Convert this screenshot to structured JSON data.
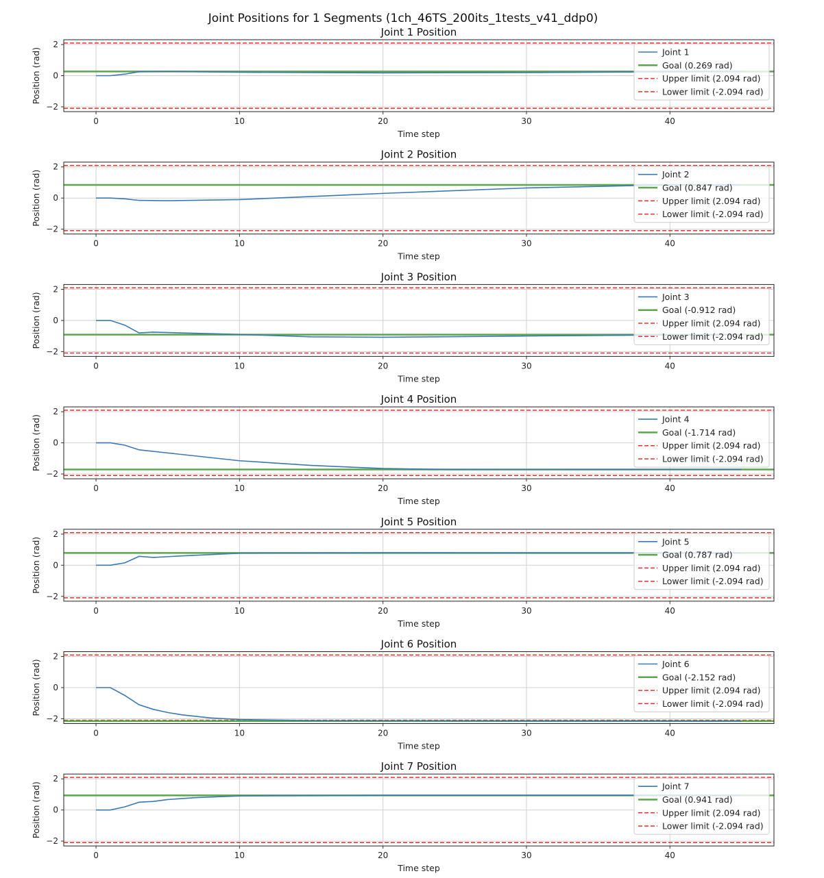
{
  "chart_data": {
    "title": "Joint Positions for 1 Segments (1ch_46TS_200its_1tests_v41_ddp0)",
    "colors": {
      "joint": "#3a78b5",
      "goal": "#5aa64a",
      "limit": "#e8302a"
    },
    "grid": true,
    "legend_placement": "upper right",
    "subplots": [
      {
        "type": "line",
        "title": "Joint 1 Position",
        "xlabel": "Time step",
        "ylabel": "Position (rad)",
        "xlim": [
          -2.25,
          47.25
        ],
        "ylim": [
          -2.31,
          2.31
        ],
        "xticks": [
          "0",
          "10",
          "20",
          "30",
          "40"
        ],
        "yticks": [
          "2",
          "0",
          "−2"
        ],
        "series": [
          {
            "name": "Joint 1",
            "x": [
              0,
              1,
              2,
              3,
              5,
              10,
              20,
              30,
              40,
              45
            ],
            "y": [
              0,
              0,
              0.1,
              0.25,
              0.27,
              0.22,
              0.18,
              0.2,
              0.25,
              0.27
            ]
          }
        ],
        "goal": {
          "name": "Goal (0.269 rad)",
          "value": 0.269
        },
        "upper": {
          "name": "Upper limit (2.094 rad)",
          "value": 2.094
        },
        "lower": {
          "name": "Lower limit (-2.094 rad)",
          "value": -2.094
        }
      },
      {
        "type": "line",
        "title": "Joint 2 Position",
        "xlabel": "Time step",
        "ylabel": "Position (rad)",
        "xlim": [
          -2.25,
          47.25
        ],
        "ylim": [
          -2.31,
          2.31
        ],
        "xticks": [
          "0",
          "10",
          "20",
          "30",
          "40"
        ],
        "yticks": [
          "2",
          "0",
          "−2"
        ],
        "series": [
          {
            "name": "Joint 2",
            "x": [
              0,
              1,
              2,
              3,
              5,
              10,
              15,
              20,
              30,
              40,
              45
            ],
            "y": [
              0,
              0,
              -0.05,
              -0.15,
              -0.17,
              -0.1,
              0.1,
              0.3,
              0.65,
              0.85,
              0.85
            ]
          }
        ],
        "goal": {
          "name": "Goal (0.847 rad)",
          "value": 0.847
        },
        "upper": {
          "name": "Upper limit (2.094 rad)",
          "value": 2.094
        },
        "lower": {
          "name": "Lower limit (-2.094 rad)",
          "value": -2.094
        }
      },
      {
        "type": "line",
        "title": "Joint 3 Position",
        "xlabel": "Time step",
        "ylabel": "Position (rad)",
        "xlim": [
          -2.25,
          47.25
        ],
        "ylim": [
          -2.31,
          2.31
        ],
        "xticks": [
          "0",
          "10",
          "20",
          "30",
          "40"
        ],
        "yticks": [
          "2",
          "0",
          "−2"
        ],
        "series": [
          {
            "name": "Joint 3",
            "x": [
              0,
              1,
              2,
              3,
              4,
              10,
              15,
              20,
              30,
              40,
              45
            ],
            "y": [
              0,
              0,
              -0.3,
              -0.8,
              -0.75,
              -0.9,
              -1.05,
              -1.08,
              -1.0,
              -0.93,
              -0.91
            ]
          }
        ],
        "goal": {
          "name": "Goal (-0.912 rad)",
          "value": -0.912
        },
        "upper": {
          "name": "Upper limit (2.094 rad)",
          "value": 2.094
        },
        "lower": {
          "name": "Lower limit (-2.094 rad)",
          "value": -2.094
        }
      },
      {
        "type": "line",
        "title": "Joint 4 Position",
        "xlabel": "Time step",
        "ylabel": "Position (rad)",
        "xlim": [
          -2.25,
          47.25
        ],
        "ylim": [
          -2.31,
          2.31
        ],
        "xticks": [
          "0",
          "10",
          "20",
          "30",
          "40"
        ],
        "yticks": [
          "2",
          "0",
          "−2"
        ],
        "series": [
          {
            "name": "Joint 4",
            "x": [
              0,
              1,
              2,
              3,
              5,
              10,
              15,
              20,
              25,
              45
            ],
            "y": [
              0,
              0,
              -0.15,
              -0.45,
              -0.65,
              -1.15,
              -1.45,
              -1.65,
              -1.72,
              -1.71
            ]
          }
        ],
        "goal": {
          "name": "Goal (-1.714 rad)",
          "value": -1.714
        },
        "upper": {
          "name": "Upper limit (2.094 rad)",
          "value": 2.094
        },
        "lower": {
          "name": "Lower limit (-2.094 rad)",
          "value": -2.094
        }
      },
      {
        "type": "line",
        "title": "Joint 5 Position",
        "xlabel": "Time step",
        "ylabel": "Position (rad)",
        "xlim": [
          -2.25,
          47.25
        ],
        "ylim": [
          -2.31,
          2.31
        ],
        "xticks": [
          "0",
          "10",
          "20",
          "30",
          "40"
        ],
        "yticks": [
          "2",
          "0",
          "−2"
        ],
        "series": [
          {
            "name": "Joint 5",
            "x": [
              0,
              1,
              2,
              3,
              4,
              6,
              10,
              20,
              30,
              45
            ],
            "y": [
              0,
              0,
              0.15,
              0.57,
              0.5,
              0.6,
              0.77,
              0.8,
              0.79,
              0.79
            ]
          }
        ],
        "goal": {
          "name": "Goal (0.787 rad)",
          "value": 0.787
        },
        "upper": {
          "name": "Upper limit (2.094 rad)",
          "value": 2.094
        },
        "lower": {
          "name": "Lower limit (-2.094 rad)",
          "value": -2.094
        }
      },
      {
        "type": "line",
        "title": "Joint 6 Position",
        "xlabel": "Time step",
        "ylabel": "Position (rad)",
        "xlim": [
          -2.25,
          47.25
        ],
        "ylim": [
          -2.31,
          2.31
        ],
        "xticks": [
          "0",
          "10",
          "20",
          "30",
          "40"
        ],
        "yticks": [
          "2",
          "0",
          "−2"
        ],
        "series": [
          {
            "name": "Joint 6",
            "x": [
              0,
              1,
              2,
              3,
              4,
              5,
              6,
              8,
              10,
              15,
              45
            ],
            "y": [
              0,
              0,
              -0.5,
              -1.1,
              -1.4,
              -1.6,
              -1.75,
              -1.95,
              -2.05,
              -2.12,
              -2.15
            ]
          }
        ],
        "goal": {
          "name": "Goal (-2.152 rad)",
          "value": -2.152
        },
        "upper": {
          "name": "Upper limit (2.094 rad)",
          "value": 2.094
        },
        "lower": {
          "name": "Lower limit (-2.094 rad)",
          "value": -2.094
        }
      },
      {
        "type": "line",
        "title": "Joint 7 Position",
        "xlabel": "Time step",
        "ylabel": "Position (rad)",
        "xlim": [
          -2.25,
          47.25
        ],
        "ylim": [
          -2.31,
          2.31
        ],
        "xticks": [
          "0",
          "10",
          "20",
          "30",
          "40"
        ],
        "yticks": [
          "2",
          "0",
          "−2"
        ],
        "series": [
          {
            "name": "Joint 7",
            "x": [
              0,
              1,
              2,
              3,
              4,
              5,
              7,
              10,
              20,
              45
            ],
            "y": [
              0,
              0,
              0.2,
              0.5,
              0.55,
              0.67,
              0.8,
              0.9,
              0.94,
              0.94
            ]
          }
        ],
        "goal": {
          "name": "Goal (0.941 rad)",
          "value": 0.941
        },
        "upper": {
          "name": "Upper limit (2.094 rad)",
          "value": 2.094
        },
        "lower": {
          "name": "Lower limit (-2.094 rad)",
          "value": -2.094
        }
      }
    ]
  }
}
